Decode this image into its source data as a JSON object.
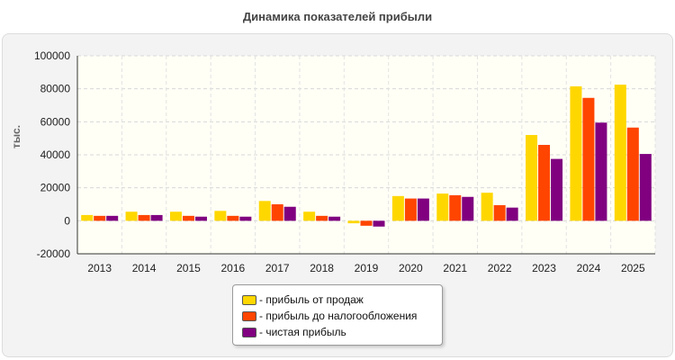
{
  "chart_data": {
    "type": "bar",
    "title": "Динамика показателей прибыли",
    "ylabel": "тыс.",
    "xlabel": "",
    "categories": [
      "2013",
      "2014",
      "2015",
      "2016",
      "2017",
      "2018",
      "2019",
      "2020",
      "2021",
      "2022",
      "2023",
      "2024",
      "2025"
    ],
    "ylim": [
      -20000,
      100000
    ],
    "yticks": [
      -20000,
      0,
      20000,
      40000,
      60000,
      80000,
      100000
    ],
    "series": [
      {
        "name": "- прибыль от продаж",
        "color": "#ffd700",
        "values": [
          3500,
          5500,
          5500,
          6000,
          12000,
          5500,
          -1500,
          15000,
          16500,
          17000,
          52000,
          81500,
          82500
        ]
      },
      {
        "name": "- прибыль до налогообложения",
        "color": "#ff4500",
        "values": [
          3000,
          3500,
          3000,
          3000,
          10000,
          3000,
          -3000,
          13500,
          15500,
          9500,
          46000,
          74500,
          56500
        ]
      },
      {
        "name": "- чистая прибыль",
        "color": "#800080",
        "values": [
          3000,
          3500,
          2500,
          2500,
          8500,
          2500,
          -3500,
          13500,
          14500,
          8000,
          37500,
          59500,
          40500
        ]
      }
    ],
    "grid": true,
    "legend_position": "bottom-center"
  }
}
